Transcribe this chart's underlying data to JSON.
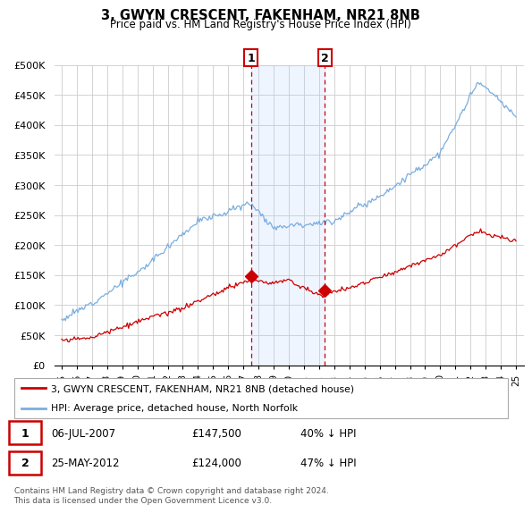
{
  "title": "3, GWYN CRESCENT, FAKENHAM, NR21 8NB",
  "subtitle": "Price paid vs. HM Land Registry's House Price Index (HPI)",
  "hpi_color": "#7aade0",
  "price_color": "#cc0000",
  "annotation_color": "#cc0000",
  "band_color": "#ddeeff",
  "grid_color": "#cccccc",
  "ylim": [
    0,
    500000
  ],
  "xlim": [
    1994.5,
    2025.5
  ],
  "yticks": [
    0,
    50000,
    100000,
    150000,
    200000,
    250000,
    300000,
    350000,
    400000,
    450000,
    500000
  ],
  "ytick_labels": [
    "£0",
    "£50K",
    "£100K",
    "£150K",
    "£200K",
    "£250K",
    "£300K",
    "£350K",
    "£400K",
    "£450K",
    "£500K"
  ],
  "transaction1": {
    "date_num": 2007.51,
    "price": 147500,
    "label": "1",
    "date_str": "06-JUL-2007",
    "pct": "40% ↓ HPI"
  },
  "transaction2": {
    "date_num": 2012.37,
    "price": 124000,
    "label": "2",
    "date_str": "25-MAY-2012",
    "pct": "47% ↓ HPI"
  },
  "legend_property": "3, GWYN CRESCENT, FAKENHAM, NR21 8NB (detached house)",
  "legend_hpi": "HPI: Average price, detached house, North Norfolk",
  "footnote": "Contains HM Land Registry data © Crown copyright and database right 2024.\nThis data is licensed under the Open Government Licence v3.0.",
  "table_rows": [
    {
      "label": "1",
      "date": "06-JUL-2007",
      "price": "£147,500",
      "pct": "40% ↓ HPI"
    },
    {
      "label": "2",
      "date": "25-MAY-2012",
      "price": "£124,000",
      "pct": "47% ↓ HPI"
    }
  ]
}
